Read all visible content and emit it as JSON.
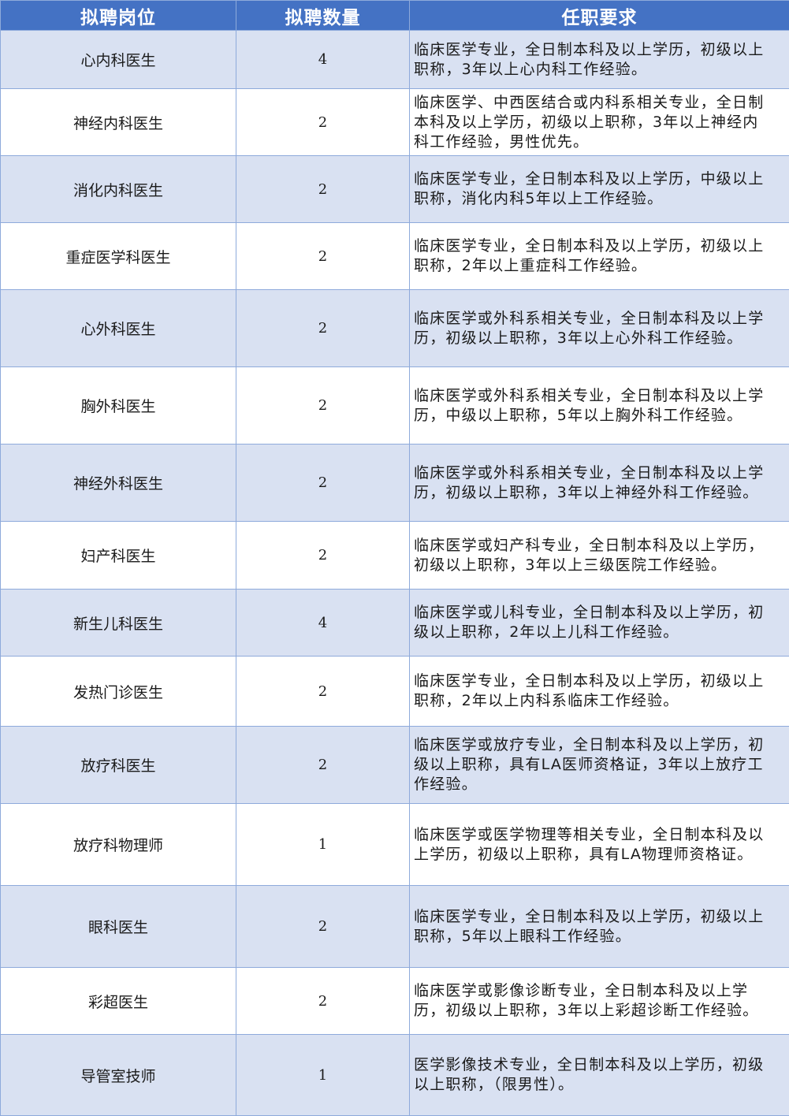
{
  "header": {
    "position": "拟聘岗位",
    "count": "拟聘数量",
    "requirements": "任职要求"
  },
  "colors": {
    "header_bg": "#4472c4",
    "alt_row_bg": "#d9e1f2",
    "border": "#8eaadb"
  },
  "rows": [
    {
      "position": "心内科医生",
      "count": "4",
      "req": [
        "临床医学专业，全日制本科及以上学历，初级以上",
        "职称，3年以上心内科工作经验。"
      ]
    },
    {
      "position": "神经内科医生",
      "count": "2",
      "req": [
        "临床医学、中西医结合或内科系相关专业，全日制",
        "本科及以上学历，初级以上职称，3年以上神经内",
        "科工作经验，男性优先。"
      ]
    },
    {
      "position": "消化内科医生",
      "count": "2",
      "req": [
        "临床医学专业，全日制本科及以上学历，中级以上",
        "职称，消化内科5年以上工作经验。"
      ]
    },
    {
      "position": "重症医学科医生",
      "count": "2",
      "req": [
        "临床医学专业，全日制本科及以上学历，初级以上",
        "职称，2年以上重症科工作经验。"
      ]
    },
    {
      "position": "心外科医生",
      "count": "2",
      "req": [
        "临床医学或外科系相关专业，全日制本科及以上学",
        "历，初级以上职称，3年以上心外科工作经验。"
      ]
    },
    {
      "position": "胸外科医生",
      "count": "2",
      "req": [
        "临床医学或外科系相关专业，全日制本科及以上学",
        "历，中级以上职称，5年以上胸外科工作经验。"
      ]
    },
    {
      "position": "神经外科医生",
      "count": "2",
      "req": [
        "临床医学或外科系相关专业，全日制本科及以上学",
        "历，初级以上职称，3年以上神经外科工作经验。"
      ]
    },
    {
      "position": "妇产科医生",
      "count": "2",
      "req": [
        "临床医学或妇产科专业，全日制本科及以上学历，",
        "初级以上职称，3年以上三级医院工作经验。"
      ]
    },
    {
      "position": "新生儿科医生",
      "count": "4",
      "req": [
        "临床医学或儿科专业，全日制本科及以上学历，初",
        "级以上职称，2年以上儿科工作经验。"
      ]
    },
    {
      "position": "发热门诊医生",
      "count": "2",
      "req": [
        "临床医学专业，全日制本科及以上学历，初级以上",
        "职称，2年以上内科系临床工作经验。"
      ]
    },
    {
      "position": "放疗科医生",
      "count": "2",
      "req": [
        "临床医学或放疗专业，全日制本科及以上学历，初",
        "级以上职称，具有LA医师资格证，3年以上放疗工",
        "作经验。"
      ]
    },
    {
      "position": "放疗科物理师",
      "count": "1",
      "req": [
        "临床医学或医学物理等相关专业，全日制本科及以",
        "上学历，初级以上职称，具有LA物理师资格证。"
      ]
    },
    {
      "position": "眼科医生",
      "count": "2",
      "req": [
        "临床医学专业，全日制本科及以上学历，初级以上",
        "职称，5年以上眼科工作经验。"
      ]
    },
    {
      "position": "彩超医生",
      "count": "2",
      "req": [
        "临床医学或影像诊断专业，全日制本科及以上学",
        "历，初级以上职称，3年以上彩超诊断工作经验。"
      ]
    },
    {
      "position": "导管室技师",
      "count": "1",
      "req": [
        "医学影像技术专业，全日制本科及以上学历，初级",
        "以上职称，（限男性）。"
      ]
    }
  ]
}
